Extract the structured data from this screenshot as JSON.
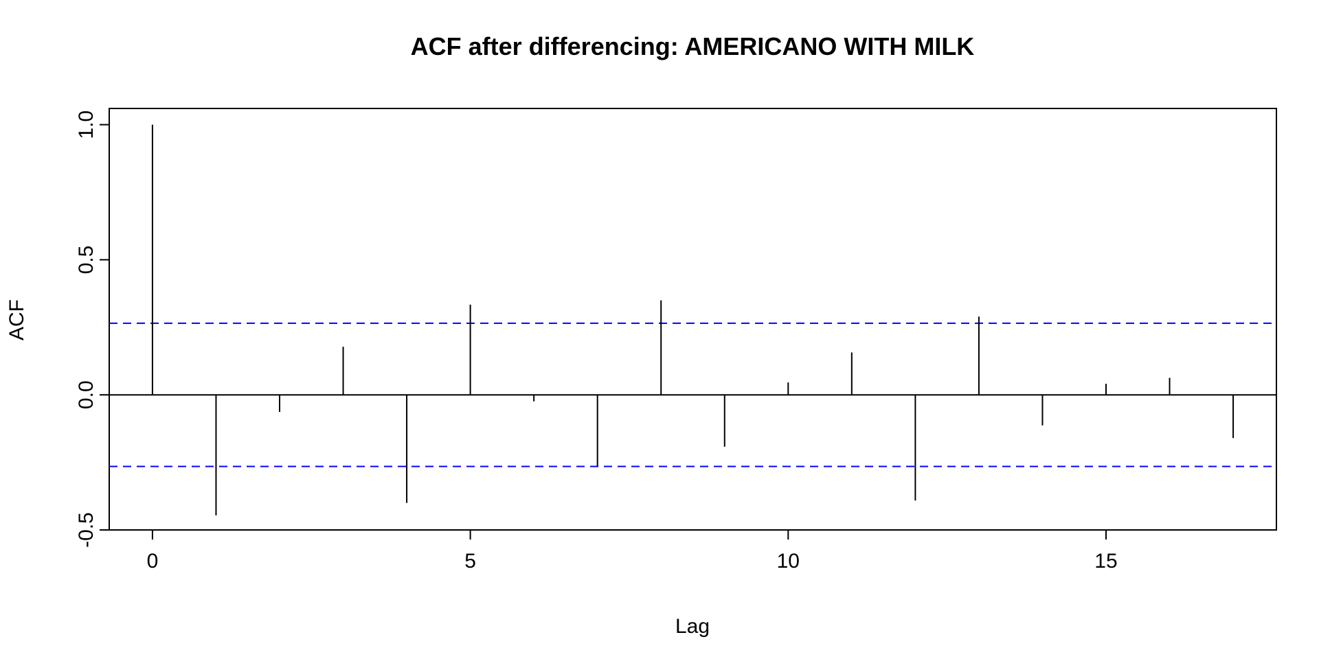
{
  "chart_data": {
    "type": "bar",
    "title": "ACF after differencing: AMERICANO WITH MILK",
    "xlabel": "Lag",
    "ylabel": "ACF",
    "xlim": [
      -0.68,
      17.68
    ],
    "ylim": [
      -0.5,
      1.06
    ],
    "x_ticks": [
      0,
      5,
      10,
      15
    ],
    "x_tick_labels": [
      "0",
      "5",
      "10",
      "15"
    ],
    "y_ticks": [
      -0.5,
      0.0,
      0.5,
      1.0
    ],
    "y_tick_labels": [
      "-0.5",
      "0.0",
      "0.5",
      "1.0"
    ],
    "lags": [
      0,
      1,
      2,
      3,
      4,
      5,
      6,
      7,
      8,
      9,
      10,
      11,
      12,
      13,
      14,
      15,
      16,
      17
    ],
    "values": [
      1.0,
      -0.446,
      -0.063,
      0.178,
      -0.4,
      0.334,
      -0.024,
      -0.263,
      0.35,
      -0.192,
      0.046,
      0.157,
      -0.391,
      0.29,
      -0.113,
      0.041,
      0.063,
      -0.16
    ],
    "confidence_bound": 0.265,
    "zero_line": true,
    "grid": false,
    "colors": {
      "bars": "#000000",
      "confidence_lines": "#0000ff",
      "frame": "#000000"
    }
  }
}
